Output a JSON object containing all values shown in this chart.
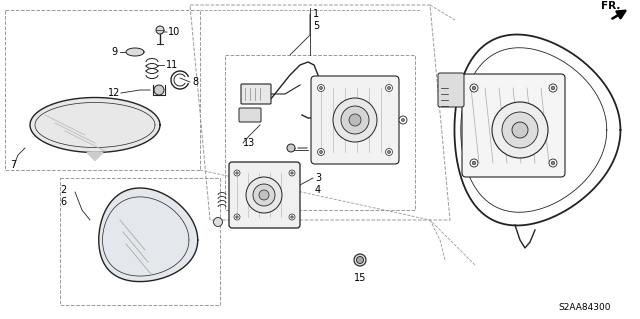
{
  "background_color": "#ffffff",
  "diagram_color": "#222222",
  "dashed_color": "#999999",
  "fs": 7.0,
  "fr_text": "FR.",
  "diagram_code": "S2AA84300"
}
